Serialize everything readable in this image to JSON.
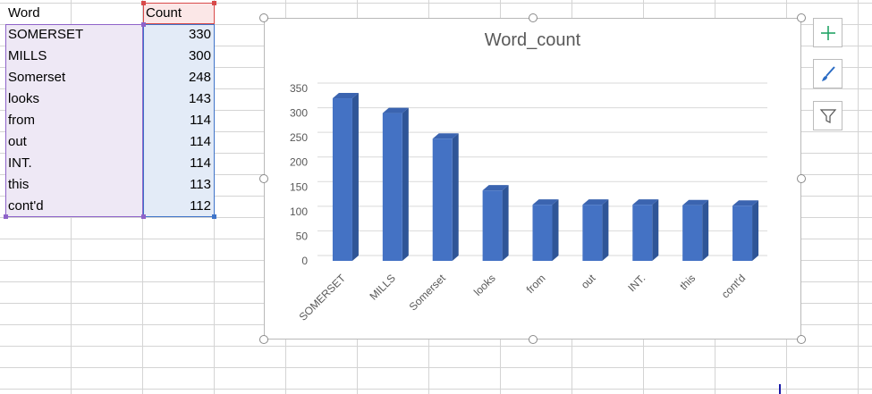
{
  "table": {
    "headers": [
      "Word",
      "Count"
    ],
    "rows": [
      {
        "word": "SOMERSET",
        "count": "330"
      },
      {
        "word": "MILLS",
        "count": "300"
      },
      {
        "word": "Somerset",
        "count": "248"
      },
      {
        "word": "looks",
        "count": "143"
      },
      {
        "word": "from",
        "count": "114"
      },
      {
        "word": "out",
        "count": "114"
      },
      {
        "word": "INT.",
        "count": "114"
      },
      {
        "word": "this",
        "count": "113"
      },
      {
        "word": "cont'd",
        "count": "112"
      }
    ]
  },
  "chart_data": {
    "type": "bar",
    "title": "Word_count",
    "categories": [
      "SOMERSET",
      "MILLS",
      "Somerset",
      "looks",
      "from",
      "out",
      "INT.",
      "this",
      "cont'd"
    ],
    "values": [
      330,
      300,
      248,
      143,
      114,
      114,
      114,
      113,
      112
    ],
    "ylim": [
      0,
      350
    ],
    "yticks": [
      "0",
      "50",
      "100",
      "150",
      "200",
      "250",
      "300",
      "350"
    ],
    "xlabel": "",
    "ylabel": "",
    "grid": true,
    "bar_color": "#4472c4",
    "style": "3d-column"
  },
  "chart_tools": {
    "icons": [
      "plus-icon",
      "brush-icon",
      "filter-icon"
    ]
  },
  "colors": {
    "word_range": "#8e63c9",
    "count_range": "#3f74c9",
    "header_range": "#d84a4a",
    "plus_icon": "#21a366",
    "brush_icon": "#2b6cc4"
  }
}
